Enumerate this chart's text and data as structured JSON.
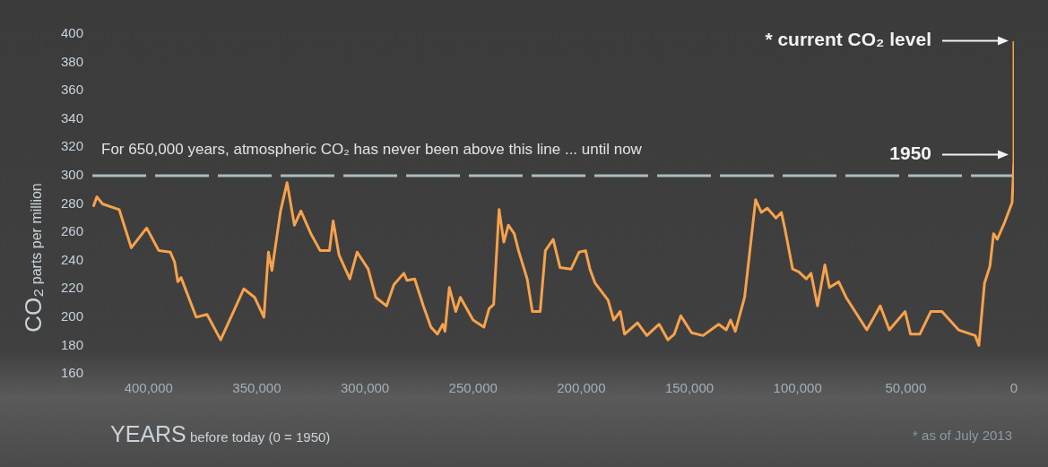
{
  "chart_data": {
    "type": "line",
    "xlabel": "YEARS before today (0 = 1950)",
    "ylabel": "CO₂ parts per million",
    "x": [
      425600,
      423900,
      421300,
      413600,
      408000,
      400900,
      395300,
      390000,
      388000,
      386500,
      385000,
      378000,
      373000,
      366700,
      356000,
      351000,
      346700,
      344600,
      343000,
      339000,
      336000,
      332600,
      329600,
      325000,
      320700,
      316400,
      314700,
      312000,
      307000,
      303600,
      298500,
      295000,
      290000,
      286600,
      282000,
      280600,
      277000,
      273000,
      269500,
      266500,
      264000,
      263000,
      261000,
      258000,
      255900,
      250000,
      245000,
      242600,
      240500,
      238000,
      235800,
      233700,
      231000,
      229000,
      225000,
      222600,
      219000,
      216600,
      213000,
      209800,
      204700,
      201000,
      198000,
      196000,
      193600,
      187600,
      185000,
      182000,
      180000,
      174000,
      169700,
      164000,
      160000,
      157000,
      154000,
      149000,
      143700,
      136500,
      133000,
      131000,
      128800,
      124500,
      119400,
      116800,
      114000,
      110000,
      107500,
      105800,
      102300,
      99400,
      96000,
      93800,
      90800,
      87400,
      85300,
      81000,
      77600,
      68000,
      61800,
      57600,
      50300,
      47800,
      43500,
      38400,
      33300,
      25600,
      17900,
      16200,
      13600,
      11100,
      9400,
      7700,
      4300,
      850,
      0,
      0
    ],
    "series": [
      {
        "color": "#f7a24b",
        "values": [
          278,
          285,
          280,
          276,
          249,
          263,
          247,
          246,
          239,
          225,
          228,
          200,
          202,
          184,
          220,
          214,
          200,
          246,
          233,
          275,
          295,
          265,
          275,
          259,
          247,
          247,
          268,
          244,
          227,
          246,
          234,
          214,
          208,
          223,
          231,
          226,
          227,
          208,
          193,
          188,
          195,
          190,
          221,
          204,
          214,
          198,
          193,
          206,
          209,
          276,
          253,
          265,
          259,
          247,
          227,
          204,
          204,
          247,
          255,
          235,
          234,
          246,
          247,
          234,
          224,
          212,
          198,
          204,
          188,
          196,
          187,
          195,
          184,
          188,
          201,
          189,
          187,
          195,
          191,
          198,
          190,
          214,
          283,
          274,
          277,
          270,
          274,
          262,
          234,
          232,
          227,
          231,
          208,
          237,
          221,
          225,
          214,
          191,
          208,
          191,
          204,
          188,
          188,
          204,
          204,
          191,
          187,
          180,
          224,
          236,
          259,
          255,
          267,
          281,
          311,
          395
        ]
      }
    ],
    "xlim": [
      426000,
      0
    ],
    "ylim": [
      160,
      400
    ],
    "xticks": [
      {
        "value": 400000,
        "label": "400,000"
      },
      {
        "value": 350000,
        "label": "350,000"
      },
      {
        "value": 300000,
        "label": "300,000"
      },
      {
        "value": 250000,
        "label": "250,000"
      },
      {
        "value": 200000,
        "label": "200,000"
      },
      {
        "value": 150000,
        "label": "150,000"
      },
      {
        "value": 100000,
        "label": "100,000"
      },
      {
        "value": 50000,
        "label": "50,000"
      },
      0
    ],
    "yticks": [
      160,
      180,
      200,
      220,
      240,
      260,
      280,
      300,
      320,
      340,
      360,
      380,
      400
    ],
    "grid": false,
    "legend": false,
    "marker": "none",
    "ref_lines": [
      {
        "axis": "y",
        "value": 300,
        "label": "For 650,000 years, atmospheric CO₂ has never been above this line ... until now",
        "color": "#a9bcc0",
        "line_style": "dashed"
      }
    ],
    "annotations": [
      "* current CO₂ level",
      "1950",
      "* as of July 2013"
    ]
  }
}
